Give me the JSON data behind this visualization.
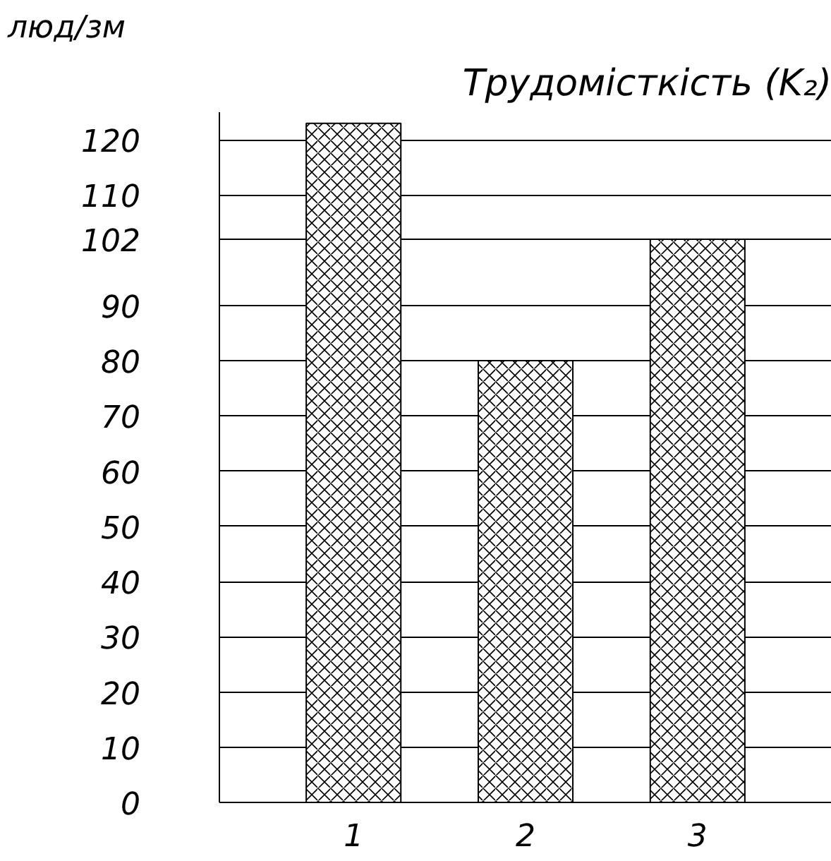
{
  "chart_data": {
    "type": "bar",
    "title": "Трудомісткість (K₂)",
    "ylabel": "люд/зм",
    "categories": [
      "1",
      "2",
      "3"
    ],
    "values": [
      123,
      80,
      102
    ],
    "color": "#ffffff",
    "ylim": [
      0,
      125
    ],
    "yticks": [
      0,
      10,
      20,
      30,
      40,
      50,
      60,
      70,
      80,
      90,
      102,
      110,
      120
    ],
    "grid": "y"
  }
}
